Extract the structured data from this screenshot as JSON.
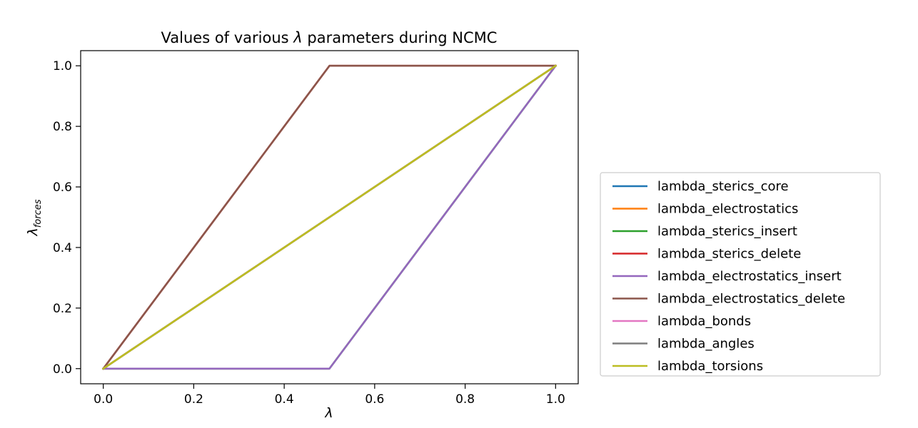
{
  "chart_data": {
    "type": "line",
    "title_prefix": "Values of various ",
    "title_symbol": "λ",
    "title_suffix": " parameters during NCMC",
    "xlabel": "λ",
    "ylabel_main": "λ",
    "ylabel_sub": "forces",
    "xlim": [
      -0.05,
      1.05
    ],
    "ylim": [
      -0.05,
      1.05
    ],
    "xticks": [
      0.0,
      0.2,
      0.4,
      0.6,
      0.8,
      1.0
    ],
    "yticks": [
      0.0,
      0.2,
      0.4,
      0.6,
      0.8,
      1.0
    ],
    "xtick_labels": [
      "0.0",
      "0.2",
      "0.4",
      "0.6",
      "0.8",
      "1.0"
    ],
    "ytick_labels": [
      "0.0",
      "0.2",
      "0.4",
      "0.6",
      "0.8",
      "1.0"
    ],
    "grid": false,
    "legend_position": "right",
    "series": [
      {
        "name": "lambda_sterics_core",
        "color": "#1f77b4",
        "x": [
          0,
          1
        ],
        "y": [
          0,
          1
        ]
      },
      {
        "name": "lambda_electrostatics",
        "color": "#ff7f0e",
        "x": [
          0,
          1
        ],
        "y": [
          0,
          1
        ]
      },
      {
        "name": "lambda_sterics_insert",
        "color": "#2ca02c",
        "x": [
          0,
          0.5,
          1
        ],
        "y": [
          0,
          0,
          1
        ]
      },
      {
        "name": "lambda_sterics_delete",
        "color": "#d62728",
        "x": [
          0,
          0.5,
          1
        ],
        "y": [
          0,
          1,
          1
        ]
      },
      {
        "name": "lambda_electrostatics_insert",
        "color": "#9467bd",
        "x": [
          0,
          0.5,
          1
        ],
        "y": [
          0,
          0,
          1
        ]
      },
      {
        "name": "lambda_electrostatics_delete",
        "color": "#8c564b",
        "x": [
          0,
          0.5,
          1
        ],
        "y": [
          0,
          1,
          1
        ]
      },
      {
        "name": "lambda_bonds",
        "color": "#e377c2",
        "x": [
          0,
          1
        ],
        "y": [
          0,
          1
        ]
      },
      {
        "name": "lambda_angles",
        "color": "#7f7f7f",
        "x": [
          0,
          1
        ],
        "y": [
          0,
          1
        ]
      },
      {
        "name": "lambda_torsions",
        "color": "#bcbd22",
        "x": [
          0,
          1
        ],
        "y": [
          0,
          1
        ]
      }
    ]
  }
}
